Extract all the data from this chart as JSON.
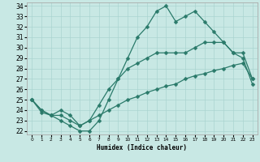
{
  "xlabel": "Humidex (Indice chaleur)",
  "xlim": [
    -0.5,
    23.5
  ],
  "ylim": [
    21.7,
    34.3
  ],
  "yticks": [
    22,
    23,
    24,
    25,
    26,
    27,
    28,
    29,
    30,
    31,
    32,
    33,
    34
  ],
  "xticks": [
    0,
    1,
    2,
    3,
    4,
    5,
    6,
    7,
    8,
    9,
    10,
    11,
    12,
    13,
    14,
    15,
    16,
    17,
    18,
    19,
    20,
    21,
    22,
    23
  ],
  "bg_color": "#c8e8e4",
  "line_color": "#2a7a6a",
  "grid_color": "#b0d8d4",
  "line1_x": [
    0,
    1,
    2,
    3,
    4,
    5,
    6,
    7,
    8,
    9,
    10,
    11,
    12,
    13,
    14,
    15,
    16,
    17,
    18,
    19,
    20,
    21,
    22,
    23
  ],
  "line1_y": [
    25.0,
    24.0,
    23.5,
    23.0,
    22.5,
    22.0,
    22.0,
    23.0,
    25.0,
    27.0,
    29.0,
    31.0,
    32.0,
    33.5,
    34.0,
    32.5,
    33.0,
    33.5,
    32.5,
    31.5,
    30.5,
    29.5,
    29.0,
    26.5
  ],
  "line2_x": [
    0,
    1,
    2,
    3,
    4,
    5,
    6,
    7,
    8,
    9,
    10,
    11,
    12,
    13,
    14,
    15,
    16,
    17,
    18,
    19,
    20,
    21,
    22,
    23
  ],
  "line2_y": [
    25.0,
    24.0,
    23.5,
    24.0,
    23.5,
    22.5,
    23.0,
    24.5,
    26.0,
    27.0,
    28.0,
    28.5,
    29.0,
    29.5,
    29.5,
    29.5,
    29.5,
    30.0,
    30.5,
    30.5,
    30.5,
    29.5,
    29.5,
    27.0
  ],
  "line3_x": [
    0,
    1,
    2,
    3,
    4,
    5,
    6,
    7,
    8,
    9,
    10,
    11,
    12,
    13,
    14,
    15,
    16,
    17,
    18,
    19,
    20,
    21,
    22,
    23
  ],
  "line3_y": [
    25.0,
    23.8,
    23.5,
    23.5,
    23.0,
    22.5,
    23.0,
    23.5,
    24.0,
    24.5,
    25.0,
    25.3,
    25.7,
    26.0,
    26.3,
    26.5,
    27.0,
    27.3,
    27.5,
    27.8,
    28.0,
    28.3,
    28.5,
    27.0
  ]
}
